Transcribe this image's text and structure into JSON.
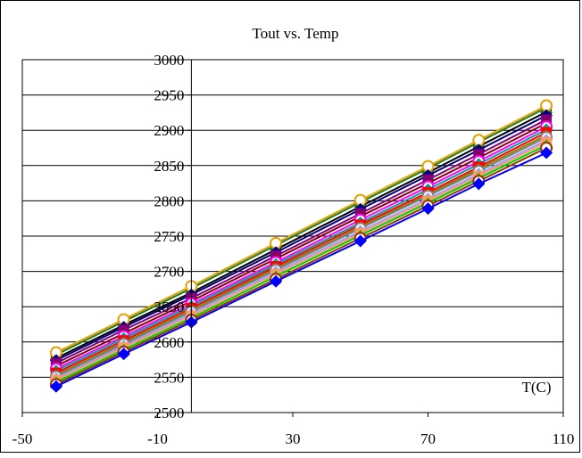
{
  "chart_data": {
    "type": "line",
    "title": "Tout vs. Temp",
    "xlabel": "T(C)",
    "ylabel": "",
    "xlim": [
      -50,
      110
    ],
    "ylim": [
      2500,
      3000
    ],
    "x_ticks": [
      -50,
      -10,
      30,
      70,
      110
    ],
    "y_ticks": [
      2500,
      2550,
      2600,
      2650,
      2700,
      2750,
      2800,
      2850,
      2900,
      2950,
      3000
    ],
    "grid": "horizontal",
    "y_axis_position_x": 0,
    "x": [
      -40,
      -20,
      0,
      25,
      50,
      70,
      85,
      105
    ],
    "series": [
      {
        "color": "#000000",
        "values": [
          2577,
          2624,
          2670,
          2731,
          2792,
          2840,
          2877,
          2926
        ]
      },
      {
        "color": "#1f7a1f",
        "values": [
          2582,
          2629,
          2676,
          2737,
          2798,
          2846,
          2883,
          2932
        ]
      },
      {
        "color": "#e6a000",
        "values": [
          2585,
          2632,
          2679,
          2740,
          2801,
          2849,
          2886,
          2935
        ]
      },
      {
        "color": "#000080",
        "values": [
          2574,
          2621,
          2667,
          2727,
          2788,
          2836,
          2872,
          2921
        ]
      },
      {
        "color": "#800080",
        "values": [
          2570,
          2617,
          2662,
          2722,
          2782,
          2830,
          2866,
          2915
        ]
      },
      {
        "color": "#8b0000",
        "values": [
          2566,
          2612,
          2658,
          2718,
          2778,
          2825,
          2861,
          2910
        ]
      },
      {
        "color": "#ff00ff",
        "values": [
          2562,
          2608,
          2654,
          2713,
          2773,
          2820,
          2856,
          2905
        ]
      },
      {
        "color": "#00a0a0",
        "values": [
          2559,
          2605,
          2651,
          2710,
          2769,
          2816,
          2852,
          2901
        ]
      },
      {
        "color": "#ff0000",
        "values": [
          2556,
          2602,
          2648,
          2707,
          2766,
          2812,
          2848,
          2897
        ]
      },
      {
        "color": "#808000",
        "values": [
          2553,
          2599,
          2645,
          2704,
          2763,
          2809,
          2845,
          2893
        ]
      },
      {
        "color": "#808080",
        "values": [
          2551,
          2597,
          2643,
          2702,
          2761,
          2807,
          2842,
          2890
        ]
      },
      {
        "color": "#9999ff",
        "values": [
          2548,
          2594,
          2640,
          2699,
          2757,
          2803,
          2838,
          2886
        ]
      },
      {
        "color": "#ff9966",
        "values": [
          2546,
          2592,
          2637,
          2696,
          2754,
          2800,
          2835,
          2883
        ]
      },
      {
        "color": "#00cc00",
        "values": [
          2543,
          2589,
          2634,
          2693,
          2751,
          2797,
          2832,
          2879
        ]
      },
      {
        "color": "#993300",
        "values": [
          2540,
          2586,
          2631,
          2689,
          2747,
          2793,
          2828,
          2875
        ]
      },
      {
        "color": "#0000ff",
        "values": [
          2537,
          2583,
          2628,
          2686,
          2743,
          2789,
          2824,
          2868
        ]
      }
    ]
  }
}
